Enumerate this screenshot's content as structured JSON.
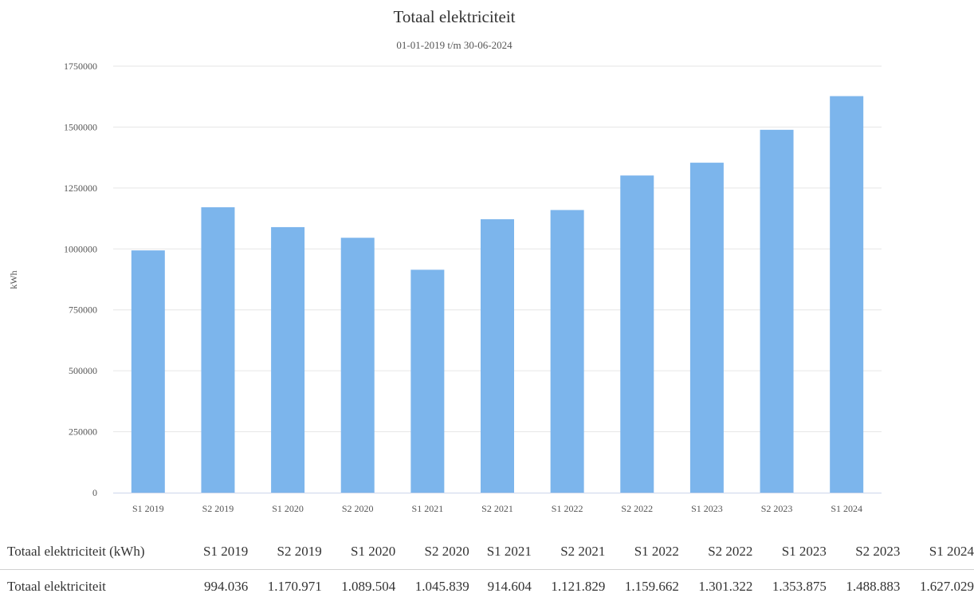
{
  "chart_data": {
    "type": "bar",
    "title": "Totaal elektriciteit",
    "subtitle": "01-01-2019 t/m 30-06-2024",
    "ylabel": "kWh",
    "xlabel": "",
    "ylim": [
      0,
      1750000
    ],
    "yticks": [
      "0",
      "250000",
      "500000",
      "750000",
      "1000000",
      "1250000",
      "1500000",
      "1750000"
    ],
    "ytick_values": [
      0,
      250000,
      500000,
      750000,
      1000000,
      1250000,
      1500000,
      1750000
    ],
    "grid": true,
    "legend": "none",
    "bar_color": "#7cb5ec",
    "categories": [
      "S1 2019",
      "S2 2019",
      "S1 2020",
      "S2 2020",
      "S1 2021",
      "S2 2021",
      "S1 2022",
      "S2 2022",
      "S1 2023",
      "S2 2023",
      "S1 2024"
    ],
    "series": [
      {
        "name": "Totaal elektriciteit",
        "values": [
          994036,
          1170971,
          1089504,
          1045839,
          914604,
          1121829,
          1159662,
          1301322,
          1353875,
          1488883,
          1627029
        ]
      }
    ]
  },
  "table": {
    "header_first": "Totaal elektriciteit (kWh)",
    "headers": [
      "S1 2019",
      "S2 2019",
      "S1 2020",
      "S2 2020",
      "S1 2021",
      "S2 2021",
      "S1 2022",
      "S2 2022",
      "S1 2023",
      "S2 2023",
      "S1 2024"
    ],
    "row_label": "Totaal elektriciteit",
    "row_values": [
      "994.036",
      "1.170.971",
      "1.089.504",
      "1.045.839",
      "914.604",
      "1.121.829",
      "1.159.662",
      "1.301.322",
      "1.353.875",
      "1.488.883",
      "1.627.029"
    ]
  }
}
